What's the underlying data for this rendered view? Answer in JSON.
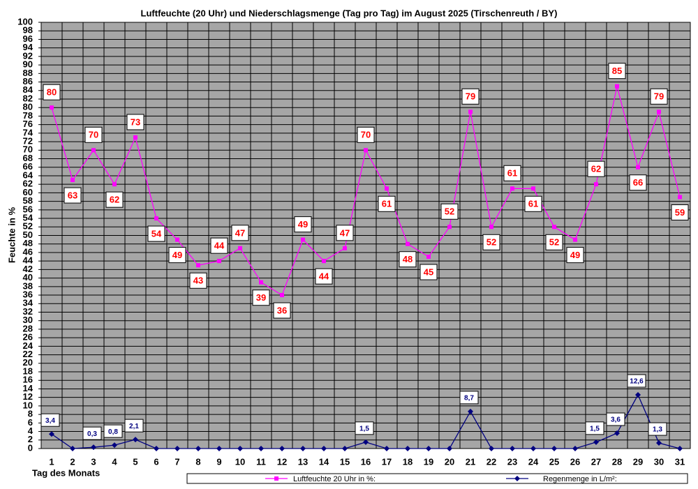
{
  "chart_data": {
    "type": "line",
    "title": "Luftfeuchte (20 Uhr) und Niederschlagsmenge (Tag pro Tag) im August 2025 (Tirschenreuth / BY)",
    "xlabel": "Tag des Monats",
    "ylabel": "Feuchte in %",
    "categories": [
      "1",
      "2",
      "3",
      "4",
      "5",
      "6",
      "7",
      "8",
      "9",
      "10",
      "11",
      "12",
      "13",
      "14",
      "15",
      "16",
      "17",
      "18",
      "19",
      "20",
      "21",
      "22",
      "23",
      "24",
      "25",
      "26",
      "27",
      "28",
      "29",
      "30",
      "31"
    ],
    "ylim": [
      0,
      100
    ],
    "yticks": [
      0,
      2,
      4,
      6,
      8,
      10,
      12,
      14,
      16,
      18,
      20,
      22,
      24,
      26,
      28,
      30,
      32,
      34,
      36,
      38,
      40,
      42,
      44,
      46,
      48,
      50,
      52,
      54,
      56,
      58,
      60,
      62,
      64,
      66,
      68,
      70,
      72,
      74,
      76,
      78,
      80,
      82,
      84,
      86,
      88,
      90,
      92,
      94,
      96,
      98,
      100
    ],
    "grid": true,
    "legend": "bottom",
    "series": [
      {
        "name": "Luftfeuchte 20 Uhr in %:",
        "color": "#ff00ff",
        "marker": "square",
        "values": [
          80,
          63,
          70,
          62,
          73,
          54,
          49,
          43,
          44,
          47,
          39,
          36,
          49,
          44,
          47,
          70,
          61,
          48,
          45,
          52,
          79,
          52,
          61,
          61,
          52,
          49,
          62,
          85,
          66,
          79,
          59
        ]
      },
      {
        "name": "Regenmenge in L/m²:",
        "color": "#000080",
        "marker": "diamond",
        "values": [
          3.4,
          0,
          0.3,
          0.8,
          2.1,
          0,
          0,
          0,
          0,
          0,
          0,
          0,
          0,
          0,
          0,
          1.5,
          0,
          0,
          0,
          0,
          8.7,
          0,
          0,
          0,
          0,
          0,
          1.5,
          3.6,
          12.6,
          1.3,
          0
        ],
        "value_labels": [
          "3,4",
          null,
          "0,3",
          "0,8",
          "2,1",
          null,
          null,
          null,
          null,
          null,
          null,
          null,
          null,
          null,
          null,
          "1,5",
          null,
          null,
          null,
          null,
          "8,7",
          null,
          null,
          null,
          null,
          null,
          "1,5",
          "3,6",
          "12,6",
          "1,3",
          null
        ]
      }
    ]
  }
}
